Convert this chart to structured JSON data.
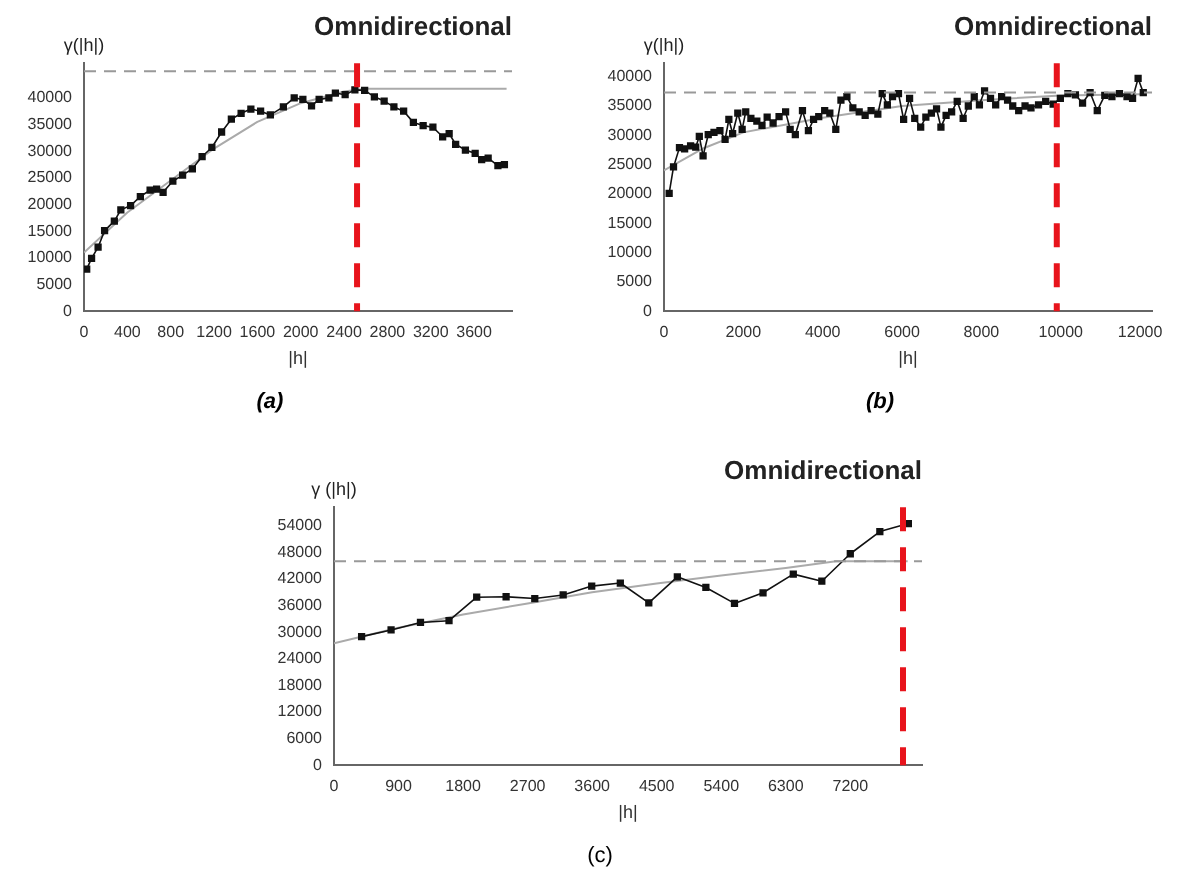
{
  "chart_data": [
    {
      "type": "line",
      "title": "Omnidirectional",
      "xlabel": "|h|",
      "ylabel": "γ(|h|)",
      "annotations": [
        "(a)"
      ],
      "xlim": [
        0,
        3950
      ],
      "ylim": [
        0,
        46500
      ],
      "xticks": [
        0,
        400,
        800,
        1200,
        1600,
        2000,
        2400,
        2800,
        3200,
        3600
      ],
      "yticks": [
        0,
        5000,
        10000,
        15000,
        20000,
        25000,
        30000,
        35000,
        40000
      ],
      "grid": false,
      "legend": false,
      "series": [
        {
          "type": "line",
          "color": "#111111",
          "marker": "square",
          "x": [
            25,
            70,
            130,
            190,
            280,
            340,
            430,
            520,
            610,
            670,
            730,
            820,
            910,
            1000,
            1090,
            1180,
            1270,
            1360,
            1450,
            1540,
            1630,
            1720,
            1840,
            1940,
            2020,
            2100,
            2170,
            2260,
            2320,
            2410,
            2500,
            2590,
            2680,
            2770,
            2860,
            2950,
            3040,
            3130,
            3220,
            3310,
            3370,
            3430,
            3520,
            3610,
            3670,
            3730,
            3820,
            3880
          ],
          "values": [
            7900,
            9900,
            12000,
            15100,
            16900,
            19000,
            19800,
            21500,
            22700,
            22900,
            22300,
            24400,
            25500,
            26700,
            29000,
            30700,
            33600,
            36000,
            37100,
            37900,
            37500,
            36800,
            38300,
            40000,
            39700,
            38500,
            39700,
            40000,
            40900,
            40600,
            41500,
            41400,
            40200,
            39400,
            38300,
            37500,
            35400,
            34800,
            34500,
            32700,
            33300,
            31300,
            30200,
            29600,
            28400,
            28700,
            27300,
            27500
          ]
        },
        {
          "type": "line",
          "color": "#aaaaaa",
          "marker": "none",
          "x": [
            0,
            400,
            800,
            1200,
            1600,
            2000,
            2400,
            2600,
            3900
          ],
          "values": [
            11000,
            18500,
            24500,
            30500,
            35500,
            39000,
            41200,
            41700,
            41700
          ]
        }
      ],
      "ref_lines": [
        {
          "axis": "y",
          "value": 45000,
          "color": "#999999",
          "line_style": "dashed"
        },
        {
          "axis": "x",
          "value": 2520,
          "color": "#e8141c",
          "line_style": "dashed"
        }
      ]
    },
    {
      "type": "line",
      "title": "Omnidirectional",
      "xlabel": "|h|",
      "ylabel": "γ(|h|)",
      "annotations": [
        "(b)"
      ],
      "xlim": [
        0,
        12300
      ],
      "ylim": [
        0,
        42300
      ],
      "xticks": [
        0,
        2000,
        4000,
        6000,
        8000,
        10000,
        12000
      ],
      "yticks": [
        0,
        5000,
        10000,
        15000,
        20000,
        25000,
        30000,
        35000,
        40000
      ],
      "grid": false,
      "legend": false,
      "series": [
        {
          "type": "line",
          "color": "#111111",
          "marker": "square",
          "x": [
            130,
            240,
            390,
            520,
            670,
            800,
            890,
            985,
            1115,
            1260,
            1410,
            1540,
            1635,
            1730,
            1860,
            1970,
            2060,
            2190,
            2340,
            2470,
            2600,
            2750,
            2900,
            3065,
            3180,
            3310,
            3490,
            3640,
            3770,
            3900,
            4050,
            4180,
            4330,
            4460,
            4610,
            4760,
            4920,
            5070,
            5220,
            5390,
            5500,
            5630,
            5760,
            5910,
            6040,
            6190,
            6320,
            6470,
            6600,
            6740,
            6870,
            6980,
            7110,
            7250,
            7390,
            7540,
            7670,
            7820,
            7950,
            8080,
            8230,
            8360,
            8510,
            8660,
            8790,
            8940,
            9100,
            9250,
            9440,
            9620,
            9810,
            9990,
            10180,
            10370,
            10550,
            10740,
            10920,
            11110,
            11290,
            11480,
            11670,
            11810,
            11950,
            12080
          ],
          "values": [
            20100,
            24600,
            27900,
            27700,
            28200,
            28000,
            29800,
            26500,
            30100,
            30500,
            30800,
            29300,
            32700,
            30300,
            33800,
            31000,
            34000,
            32900,
            32400,
            31700,
            33100,
            32100,
            33200,
            34000,
            31000,
            30100,
            34200,
            30800,
            32700,
            33200,
            34200,
            33800,
            31000,
            36000,
            36600,
            34700,
            34000,
            33400,
            34200,
            33600,
            37100,
            35200,
            36600,
            37100,
            32700,
            36300,
            32900,
            31400,
            33100,
            33800,
            34500,
            31400,
            33400,
            34000,
            35800,
            32900,
            35000,
            36600,
            35200,
            37600,
            36300,
            35200,
            36600,
            36000,
            35000,
            34200,
            35000,
            34700,
            35200,
            35800,
            35300,
            36300,
            37100,
            36900,
            35500,
            37300,
            34200,
            36800,
            36600,
            37100,
            36600,
            36300,
            39700,
            37300
          ]
        },
        {
          "type": "line",
          "color": "#aaaaaa",
          "marker": "none",
          "x": [
            0,
            1000,
            2000,
            4000,
            6000,
            8000,
            10000,
            12000
          ],
          "values": [
            24000,
            27800,
            30500,
            33000,
            35000,
            36000,
            36800,
            37000
          ]
        }
      ],
      "ref_lines": [
        {
          "axis": "y",
          "value": 37300,
          "color": "#999999",
          "line_style": "dashed"
        },
        {
          "axis": "x",
          "value": 9900,
          "color": "#e8141c",
          "line_style": "dashed"
        }
      ]
    },
    {
      "type": "line",
      "title": "Omnidirectional",
      "xlabel": "|h|",
      "ylabel": "γ (|h|)",
      "annotations": [
        "(c)"
      ],
      "xlim": [
        0,
        8200
      ],
      "ylim": [
        0,
        58200
      ],
      "xticks": [
        0,
        900,
        1800,
        2700,
        3600,
        4500,
        5400,
        6300,
        7200
      ],
      "yticks": [
        0,
        6000,
        12000,
        18000,
        24000,
        30000,
        36000,
        42000,
        48000,
        54000
      ],
      "grid": false,
      "legend": false,
      "series": [
        {
          "type": "line",
          "color": "#111111",
          "marker": "square",
          "x": [
            385,
            796,
            1206,
            1604,
            1990,
            2400,
            2800,
            3196,
            3594,
            3993,
            4390,
            4788,
            5186,
            5585,
            5983,
            6405,
            6803,
            7200,
            7612,
            8010
          ],
          "values": [
            29000,
            30500,
            32200,
            32600,
            37900,
            38000,
            37600,
            38400,
            40400,
            41100,
            36600,
            42500,
            40100,
            36500,
            38900,
            43100,
            41500,
            47700,
            52700,
            54500
          ]
        },
        {
          "type": "line",
          "color": "#aaaaaa",
          "marker": "none",
          "x": [
            0,
            900,
            1800,
            2700,
            3600,
            4500,
            5400,
            6300,
            7000,
            8000
          ],
          "values": [
            27500,
            31000,
            34000,
            36500,
            39000,
            41000,
            42800,
            44500,
            46000,
            46000
          ]
        }
      ],
      "ref_lines": [
        {
          "axis": "y",
          "value": 46000,
          "color": "#999999",
          "line_style": "dashed"
        },
        {
          "axis": "x",
          "value": 7935,
          "color": "#e8141c",
          "line_style": "dashed"
        }
      ]
    }
  ]
}
